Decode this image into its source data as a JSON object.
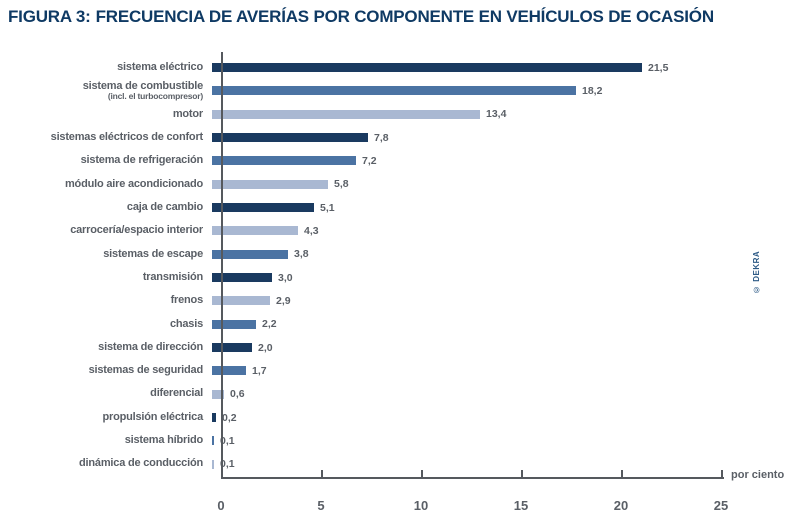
{
  "title": {
    "prefix": "FIGURA 3:",
    "text": "FRECUENCIA DE AVERÍAS POR COMPONENTE EN VEHÍCULOS DE OCASIÓN"
  },
  "copyright": "© DEKRA",
  "colors": {
    "dark": "#1a3a60",
    "medium": "#4b73a3",
    "pale": "#a9b8d2",
    "title": "#0f3a64",
    "text_gray": "#5a5f66",
    "axis": "#55595e"
  },
  "chart_data": {
    "type": "bar",
    "orientation": "horizontal",
    "title": "FIGURA 3: FRECUENCIA DE AVERÍAS POR COMPONENTE EN VEHÍCULOS DE OCASIÓN",
    "xlabel": "por ciento",
    "ylabel": "",
    "unit_label": "por ciento",
    "xlim": [
      0,
      25
    ],
    "x_ticks": [
      0,
      5,
      10,
      15,
      20,
      25
    ],
    "grid": false,
    "legend": false,
    "categories": [
      {
        "label": "sistema eléctrico",
        "value": 21.5,
        "value_label": "21,5",
        "color": "dark"
      },
      {
        "label": "sistema de combustible",
        "sublabel": "(incl. el turbocompresor)",
        "value": 18.2,
        "value_label": "18,2",
        "color": "medium"
      },
      {
        "label": "motor",
        "value": 13.4,
        "value_label": "13,4",
        "color": "pale"
      },
      {
        "label": "sistemas eléctricos de confort",
        "value": 7.8,
        "value_label": "7,8",
        "color": "dark"
      },
      {
        "label": "sistema de refrigeración",
        "value": 7.2,
        "value_label": "7,2",
        "color": "medium"
      },
      {
        "label": "módulo aire acondicionado",
        "value": 5.8,
        "value_label": "5,8",
        "color": "pale"
      },
      {
        "label": "caja de cambio",
        "value": 5.1,
        "value_label": "5,1",
        "color": "dark"
      },
      {
        "label": "carrocería/espacio interior",
        "value": 4.3,
        "value_label": "4,3",
        "color": "pale"
      },
      {
        "label": "sistemas de escape",
        "value": 3.8,
        "value_label": "3,8",
        "color": "medium"
      },
      {
        "label": "transmisión",
        "value": 3.0,
        "value_label": "3,0",
        "color": "dark"
      },
      {
        "label": "frenos",
        "value": 2.9,
        "value_label": "2,9",
        "color": "pale"
      },
      {
        "label": "chasis",
        "value": 2.2,
        "value_label": "2,2",
        "color": "medium"
      },
      {
        "label": "sistema de dirección",
        "value": 2.0,
        "value_label": "2,0",
        "color": "dark"
      },
      {
        "label": "sistemas de seguridad",
        "value": 1.7,
        "value_label": "1,7",
        "color": "medium"
      },
      {
        "label": "diferencial",
        "value": 0.6,
        "value_label": "0,6",
        "color": "pale"
      },
      {
        "label": "propulsión eléctrica",
        "value": 0.2,
        "value_label": "0,2",
        "color": "dark"
      },
      {
        "label": "sistema híbrido",
        "value": 0.1,
        "value_label": "0,1",
        "color": "medium"
      },
      {
        "label": "dinámica de conducción",
        "value": 0.1,
        "value_label": "0,1",
        "color": "pale"
      }
    ]
  }
}
